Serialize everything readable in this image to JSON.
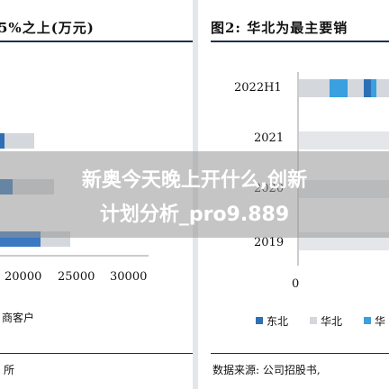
{
  "left": {
    "title_fragment": "5%之上(万元)",
    "x_ticks": [
      "20000",
      "25000",
      "30000"
    ],
    "legend_fragment": "商客户",
    "footer_fragment": "所"
  },
  "chart_data": {
    "type": "bar",
    "title": "图2: 华北为最主要销",
    "categories": [
      "2022H1",
      "2021",
      "2020",
      "2019"
    ],
    "series": [
      {
        "name": "东北",
        "color": "#2e6fb5"
      },
      {
        "name": "华北",
        "color": "#d4d7db"
      },
      {
        "name": "华",
        "color": "#3aa0e0"
      }
    ],
    "x_ticks": [
      "0"
    ],
    "legend_placement": "bottom",
    "source_fragment": "数据来源: 公司招股书,"
  },
  "overlay": {
    "line1": "新奥今天晚上开什么,创新",
    "line2": "计划分析_pro9.889"
  }
}
